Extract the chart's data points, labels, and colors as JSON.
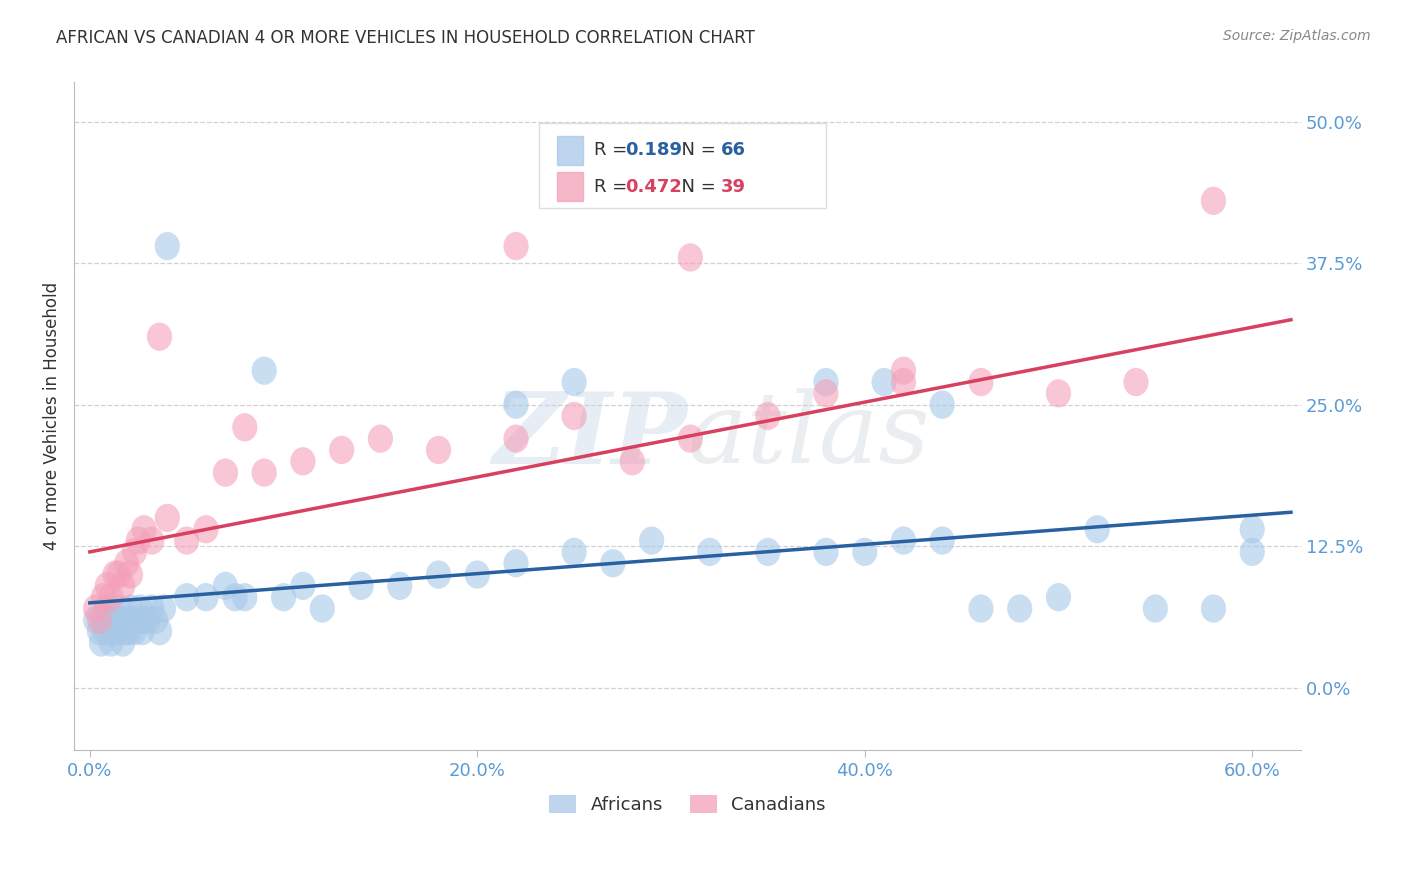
{
  "title": "AFRICAN VS CANADIAN 4 OR MORE VEHICLES IN HOUSEHOLD CORRELATION CHART",
  "source": "Source: ZipAtlas.com",
  "ylabel": "4 or more Vehicles in Household",
  "xlim": [
    -0.008,
    0.625
  ],
  "ylim": [
    -0.055,
    0.535
  ],
  "xlabel_tick_vals": [
    0.0,
    0.2,
    0.4,
    0.6
  ],
  "xlabel_tick_labels": [
    "0.0%",
    "20.0%",
    "40.0%",
    "60.0%"
  ],
  "ytick_vals": [
    0.0,
    0.125,
    0.25,
    0.375,
    0.5
  ],
  "ytick_labels": [
    "0.0%",
    "12.5%",
    "25.0%",
    "37.5%",
    "50.0%"
  ],
  "watermark": "ZIPatlas",
  "african_R": "0.189",
  "african_N": "66",
  "canadian_R": "0.472",
  "canadian_N": "39",
  "african_color": "#a8c8e8",
  "canadian_color": "#f4a0b8",
  "african_line_color": "#2860a0",
  "canadian_line_color": "#d84060",
  "african_scatter_x": [
    0.003,
    0.005,
    0.006,
    0.007,
    0.008,
    0.009,
    0.01,
    0.011,
    0.012,
    0.013,
    0.014,
    0.015,
    0.016,
    0.017,
    0.018,
    0.019,
    0.02,
    0.021,
    0.022,
    0.023,
    0.025,
    0.026,
    0.027,
    0.028,
    0.03,
    0.032,
    0.034,
    0.036,
    0.038,
    0.04,
    0.05,
    0.06,
    0.07,
    0.075,
    0.08,
    0.09,
    0.1,
    0.11,
    0.12,
    0.14,
    0.16,
    0.18,
    0.2,
    0.22,
    0.25,
    0.27,
    0.29,
    0.32,
    0.35,
    0.38,
    0.4,
    0.42,
    0.44,
    0.46,
    0.48,
    0.5,
    0.52,
    0.55,
    0.58,
    0.6,
    0.25,
    0.22,
    0.38,
    0.41,
    0.44,
    0.6
  ],
  "african_scatter_y": [
    0.06,
    0.05,
    0.04,
    0.06,
    0.05,
    0.07,
    0.06,
    0.04,
    0.05,
    0.06,
    0.05,
    0.07,
    0.06,
    0.04,
    0.05,
    0.06,
    0.05,
    0.07,
    0.06,
    0.05,
    0.06,
    0.07,
    0.05,
    0.06,
    0.06,
    0.07,
    0.06,
    0.05,
    0.07,
    0.39,
    0.08,
    0.08,
    0.09,
    0.08,
    0.08,
    0.28,
    0.08,
    0.09,
    0.07,
    0.09,
    0.09,
    0.1,
    0.1,
    0.11,
    0.12,
    0.11,
    0.13,
    0.12,
    0.12,
    0.12,
    0.12,
    0.13,
    0.13,
    0.07,
    0.07,
    0.08,
    0.14,
    0.07,
    0.07,
    0.14,
    0.27,
    0.25,
    0.27,
    0.27,
    0.25,
    0.12
  ],
  "canadian_scatter_x": [
    0.003,
    0.005,
    0.007,
    0.009,
    0.011,
    0.013,
    0.015,
    0.017,
    0.019,
    0.021,
    0.023,
    0.025,
    0.028,
    0.032,
    0.036,
    0.04,
    0.05,
    0.06,
    0.07,
    0.08,
    0.09,
    0.11,
    0.13,
    0.15,
    0.18,
    0.22,
    0.25,
    0.28,
    0.31,
    0.35,
    0.38,
    0.42,
    0.46,
    0.5,
    0.54,
    0.58,
    0.22,
    0.31,
    0.42
  ],
  "canadian_scatter_y": [
    0.07,
    0.06,
    0.08,
    0.09,
    0.08,
    0.1,
    0.1,
    0.09,
    0.11,
    0.1,
    0.12,
    0.13,
    0.14,
    0.13,
    0.31,
    0.15,
    0.13,
    0.14,
    0.19,
    0.23,
    0.19,
    0.2,
    0.21,
    0.22,
    0.21,
    0.22,
    0.24,
    0.2,
    0.22,
    0.24,
    0.26,
    0.28,
    0.27,
    0.26,
    0.27,
    0.43,
    0.39,
    0.38,
    0.27
  ],
  "african_line": [
    [
      0.0,
      0.62
    ],
    [
      0.075,
      0.155
    ]
  ],
  "canadian_line": [
    [
      0.0,
      0.62
    ],
    [
      0.12,
      0.325
    ]
  ],
  "title_color": "#333333",
  "source_color": "#888888",
  "axis_color": "#5b9bd5",
  "grid_color": "#cccccc",
  "bg_color": "#ffffff",
  "legend_box_color": "#dddddd",
  "legend_text_color": "#333333"
}
